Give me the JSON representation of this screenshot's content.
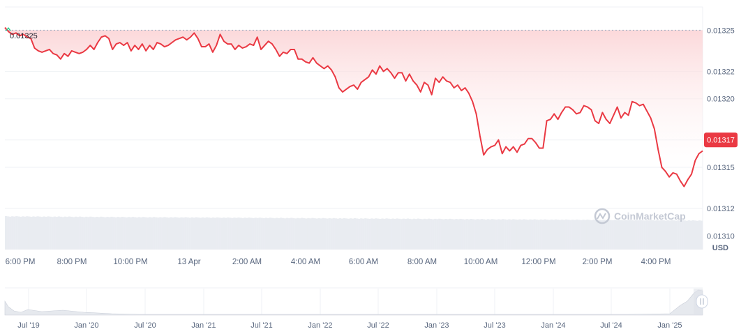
{
  "chart_data": {
    "type": "area",
    "unit_label": "USD",
    "open_price": 0.01325,
    "open_label": "0.01325",
    "current_price": 0.01317,
    "current_label": "0.01317",
    "ylim": [
      0.01309,
      0.013267
    ],
    "y_ticks": [
      "0.01325",
      "0.01322",
      "0.01320",
      "0.01317",
      "0.01315",
      "0.01312",
      "0.01310"
    ],
    "x_ticks": [
      "6:00 PM",
      "8:00 PM",
      "10:00 PM",
      "13 Apr",
      "2:00 AM",
      "4:00 AM",
      "6:00 AM",
      "8:00 AM",
      "10:00 AM",
      "12:00 PM",
      "2:00 PM",
      "4:00 PM"
    ],
    "values": [
      0.013252,
      0.013249,
      0.013247,
      0.013248,
      0.013246,
      0.013247,
      0.013245,
      0.013244,
      0.013237,
      0.013235,
      0.013234,
      0.013235,
      0.013236,
      0.013233,
      0.013232,
      0.013229,
      0.013233,
      0.013231,
      0.013235,
      0.013234,
      0.013233,
      0.013234,
      0.013236,
      0.013239,
      0.013236,
      0.013241,
      0.013245,
      0.013246,
      0.013244,
      0.013236,
      0.01324,
      0.013241,
      0.013239,
      0.013241,
      0.013235,
      0.013239,
      0.013236,
      0.01324,
      0.013235,
      0.013239,
      0.013236,
      0.013241,
      0.01324,
      0.013238,
      0.013239,
      0.013241,
      0.013243,
      0.013244,
      0.013245,
      0.013243,
      0.013245,
      0.013248,
      0.013244,
      0.013238,
      0.013238,
      0.01324,
      0.013234,
      0.013239,
      0.013247,
      0.013242,
      0.01324,
      0.01324,
      0.013236,
      0.013239,
      0.013237,
      0.013238,
      0.01324,
      0.013239,
      0.013245,
      0.013236,
      0.013239,
      0.013242,
      0.01324,
      0.013236,
      0.013231,
      0.013234,
      0.013233,
      0.013236,
      0.013236,
      0.013229,
      0.013229,
      0.013227,
      0.013226,
      0.01323,
      0.013226,
      0.013224,
      0.013222,
      0.013224,
      0.013221,
      0.013216,
      0.013208,
      0.013205,
      0.013207,
      0.013209,
      0.01321,
      0.013207,
      0.013212,
      0.013214,
      0.013216,
      0.013221,
      0.013218,
      0.013224,
      0.01322,
      0.013222,
      0.013219,
      0.013215,
      0.013219,
      0.013219,
      0.013213,
      0.013218,
      0.013213,
      0.01321,
      0.013205,
      0.013212,
      0.01321,
      0.013203,
      0.013215,
      0.013212,
      0.013216,
      0.013213,
      0.013212,
      0.013208,
      0.01321,
      0.013206,
      0.013208,
      0.013204,
      0.013198,
      0.013189,
      0.013173,
      0.013159,
      0.013163,
      0.013165,
      0.013166,
      0.01317,
      0.01316,
      0.013165,
      0.013162,
      0.013165,
      0.013161,
      0.013166,
      0.013167,
      0.013171,
      0.013171,
      0.013168,
      0.013164,
      0.013164,
      0.013184,
      0.013185,
      0.013189,
      0.013185,
      0.01319,
      0.013194,
      0.013194,
      0.013192,
      0.013189,
      0.01319,
      0.013195,
      0.013194,
      0.013192,
      0.013184,
      0.013182,
      0.01319,
      0.013185,
      0.013182,
      0.013188,
      0.013194,
      0.013186,
      0.01319,
      0.013188,
      0.013198,
      0.013197,
      0.013195,
      0.013196,
      0.013191,
      0.013186,
      0.013178,
      0.013163,
      0.01315,
      0.013147,
      0.013143,
      0.013146,
      0.013145,
      0.01314,
      0.013136,
      0.013141,
      0.013145,
      0.013155,
      0.01316,
      0.013162
    ]
  },
  "navigator": {
    "x_ticks": [
      "Jul '19",
      "Jan '20",
      "Jul '20",
      "Jan '21",
      "Jul '21",
      "Jan '22",
      "Jul '22",
      "Jan '23",
      "Jul '23",
      "Jan '24",
      "Jul '24",
      "Jan '25"
    ]
  },
  "watermark": {
    "brand": "CoinMarketCap"
  },
  "colors": {
    "line": "#ea3943",
    "fill_top": "#fbd3d5",
    "grid": "#eff2f5",
    "open_line": "#a6b0c3",
    "badge": "#ea3943",
    "volume": "#e9ecf1",
    "navigator_fill": "#d8dde5"
  }
}
